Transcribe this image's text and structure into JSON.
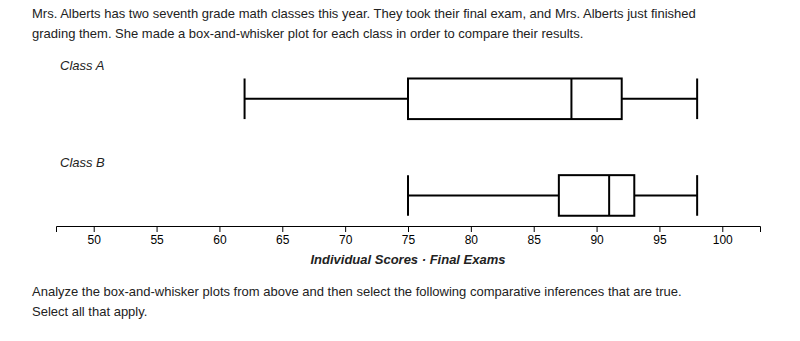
{
  "chart_data": {
    "type": "box",
    "title": "Mrs. Alberts has two seventh grade math classes this year. They took their final exam, and Mrs. Alberts just finished\ngrading them. She made a box-and-whisker plot for each class in order to compare their results.",
    "annotations": [
      "Analyze the box-and-whisker plots from above and then select the following comparative inferences that are true.\nSelect all that apply."
    ],
    "xlabel": "Individual Scores · Final Exams",
    "series": [
      {
        "name": "Class A",
        "min": 62,
        "q1": 75,
        "median": 88,
        "q3": 92,
        "max": 98
      },
      {
        "name": "Class B",
        "min": 75,
        "q1": 87,
        "median": 91,
        "q3": 93,
        "max": 98
      }
    ],
    "xlim": [
      47,
      103
    ],
    "xticks": [
      50,
      55,
      60,
      65,
      70,
      75,
      80,
      85,
      90,
      95,
      100
    ],
    "color": "#000000"
  }
}
